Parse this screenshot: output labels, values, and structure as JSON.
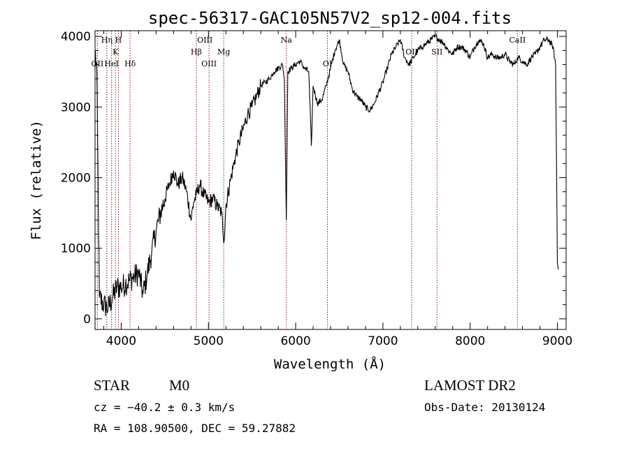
{
  "chart_data": {
    "type": "line",
    "title": "spec-56317-GAC105N57V2_sp12-004.fits",
    "xlabel": "Wavelength (Å)",
    "ylabel": "Flux (relative)",
    "xlim": [
      3700,
      9100
    ],
    "ylim": [
      -150,
      4080
    ],
    "x_ticks": [
      4000,
      5000,
      6000,
      7000,
      8000,
      9000
    ],
    "y_ticks": [
      0,
      1000,
      2000,
      3000,
      4000
    ],
    "grid": false,
    "line_color": "#000000",
    "marker_color": "#8b1a1a",
    "series": [
      {
        "x": [
          3700,
          3720,
          3750,
          3800,
          3850,
          3900,
          3950,
          4000,
          4050,
          4100,
          4150,
          4200,
          4250,
          4300,
          4350,
          4400,
          4450,
          4500,
          4550,
          4600,
          4650,
          4700,
          4750,
          4800,
          4830,
          4860,
          4900,
          4950,
          5000,
          5050,
          5100,
          5150,
          5180,
          5200,
          5250,
          5300,
          5350,
          5400,
          5450,
          5500,
          5550,
          5600,
          5650,
          5700,
          5750,
          5800,
          5850,
          5870,
          5893,
          5910,
          5950,
          6000,
          6050,
          6100,
          6150,
          6180,
          6200,
          6250,
          6300,
          6350,
          6400,
          6450,
          6500,
          6550,
          6600,
          6650,
          6700,
          6750,
          6800,
          6850,
          6900,
          6950,
          7000,
          7050,
          7100,
          7150,
          7200,
          7250,
          7300,
          7350,
          7400,
          7450,
          7500,
          7550,
          7600,
          7650,
          7700,
          7750,
          7800,
          7850,
          7900,
          7950,
          8000,
          8050,
          8100,
          8150,
          8200,
          8250,
          8300,
          8350,
          8400,
          8450,
          8500,
          8550,
          8600,
          8650,
          8700,
          8750,
          8800,
          8850,
          8900,
          8950,
          8980,
          9000,
          9010
        ],
        "y": [
          3800,
          3500,
          300,
          200,
          150,
          300,
          450,
          450,
          500,
          550,
          600,
          650,
          350,
          650,
          950,
          1250,
          1500,
          1700,
          1900,
          2100,
          1900,
          2000,
          1800,
          1400,
          1650,
          1750,
          1900,
          1750,
          1650,
          1700,
          1600,
          1500,
          1100,
          1600,
          1950,
          2250,
          2500,
          2700,
          2900,
          3000,
          3150,
          3300,
          3350,
          3400,
          3500,
          3550,
          3600,
          3400,
          1400,
          3500,
          3550,
          3600,
          3650,
          3550,
          3500,
          2450,
          3300,
          3050,
          3100,
          3300,
          3550,
          3800,
          3950,
          3600,
          3500,
          3250,
          3150,
          3100,
          3000,
          2950,
          3050,
          3200,
          3350,
          3550,
          3750,
          3850,
          3950,
          3700,
          3600,
          3700,
          3800,
          3850,
          3900,
          3950,
          4000,
          3950,
          3900,
          3800,
          3750,
          3850,
          3850,
          3800,
          3700,
          3850,
          3950,
          3900,
          3700,
          3750,
          3700,
          3700,
          3750,
          3650,
          3600,
          3700,
          3650,
          3600,
          3700,
          3750,
          3850,
          3950,
          3950,
          3850,
          3600,
          800,
          700
        ]
      }
    ],
    "lines": [
      {
        "name": "OII",
        "x": 3727,
        "level": 3
      },
      {
        "name": "Hη",
        "x": 3835,
        "level": 1
      },
      {
        "name": "H",
        "x": 3968,
        "level": 1
      },
      {
        "name": "K",
        "x": 3934,
        "level": 2
      },
      {
        "name": "HeI",
        "x": 3889,
        "level": 3
      },
      {
        "name": "Hδ",
        "x": 4102,
        "level": 3
      },
      {
        "name": "OIII",
        "x": 4959,
        "level": 1
      },
      {
        "name": "Hβ",
        "x": 4861,
        "level": 2
      },
      {
        "name": "OIII",
        "x": 5007,
        "level": 3
      },
      {
        "name": "Mg",
        "x": 5175,
        "level": 2
      },
      {
        "name": "Na",
        "x": 5893,
        "level": 1
      },
      {
        "name": "OI",
        "x": 6364,
        "level": 3
      },
      {
        "name": "OII",
        "x": 7330,
        "level": 2
      },
      {
        "name": "SII",
        "x": 7620,
        "level": 2
      },
      {
        "name": "CaII",
        "x": 8542,
        "level": 1
      }
    ],
    "marker_x": [
      3727,
      3835,
      3889,
      3934,
      3968,
      4102,
      4861,
      5007,
      5175,
      5893,
      6364,
      7330,
      7620,
      8542
    ]
  },
  "info": {
    "object_class": "STAR",
    "subclass": "M0",
    "cz": "cz = −40.2 ± 0.3 km/s",
    "coords": "RA = 108.90500, DEC =  59.27882",
    "survey": "LAMOST DR2",
    "obs_date": "Obs-Date: 20130124"
  }
}
